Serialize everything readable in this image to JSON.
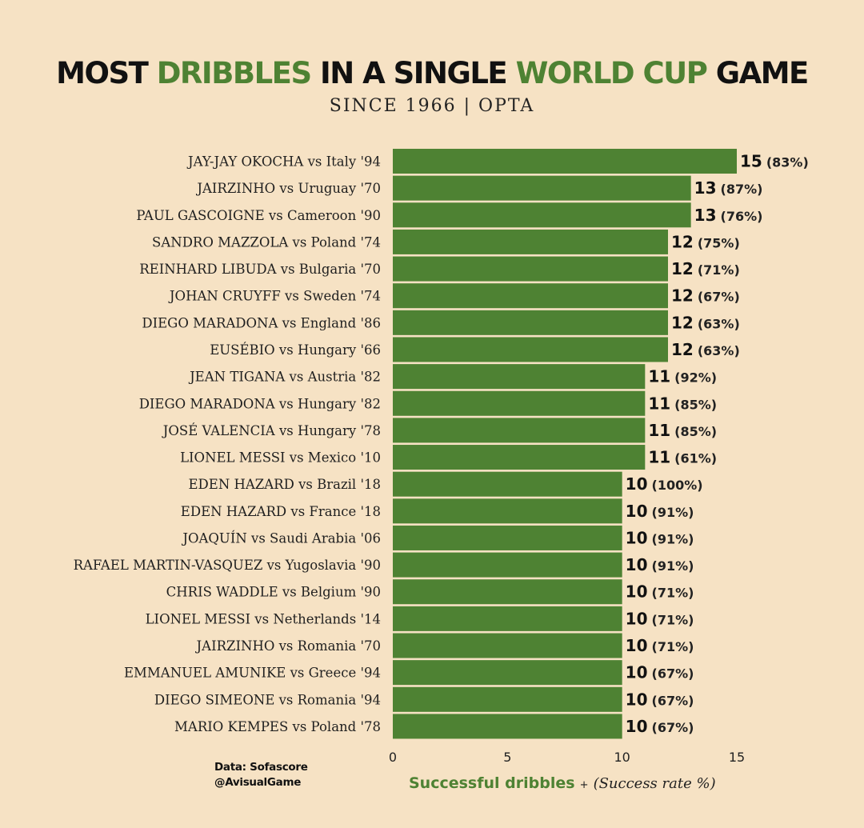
{
  "header": {
    "title_parts": [
      "MOST ",
      "DRIBBLES",
      " IN A SINGLE ",
      "WORLD CUP",
      " GAME"
    ],
    "subtitle": "SINCE 1966 | OPTA"
  },
  "footer": {
    "source_line1": "Data: Sofascore",
    "source_line2": "@AvisualGame"
  },
  "colors": {
    "background": "#f6e2c4",
    "bar": "#4e8233",
    "accent": "#4e8233"
  },
  "chart_data": {
    "type": "bar",
    "orientation": "horizontal",
    "title": "MOST DRIBBLES IN A SINGLE WORLD CUP GAME",
    "subtitle": "SINCE 1966 | OPTA",
    "xlabel": "Successful dribbles",
    "xlabel_plus": "+",
    "xlabel_secondary": "(Success rate %)",
    "xlim": [
      0,
      15
    ],
    "xticks": [
      0,
      5,
      10,
      15
    ],
    "categories": [
      "JAY-JAY OKOCHA vs Italy '94",
      "JAIRZINHO vs Uruguay '70",
      "PAUL GASCOIGNE vs Cameroon '90",
      "SANDRO MAZZOLA vs Poland '74",
      "REINHARD LIBUDA vs Bulgaria '70",
      "JOHAN CRUYFF vs Sweden '74",
      "DIEGO MARADONA vs England '86",
      "EUSÉBIO vs Hungary '66",
      "JEAN TIGANA vs Austria '82",
      "DIEGO MARADONA vs Hungary '82",
      "JOSÉ VALENCIA vs Hungary '78",
      "LIONEL MESSI vs Mexico '10",
      "EDEN HAZARD vs Brazil '18",
      "EDEN HAZARD vs France '18",
      "JOAQUÍN vs Saudi Arabia '06",
      "RAFAEL MARTIN-VASQUEZ vs Yugoslavia '90",
      "CHRIS WADDLE vs Belgium '90",
      "LIONEL MESSI vs Netherlands '14",
      "JAIRZINHO vs Romania '70",
      "EMMANUEL AMUNIKE vs Greece '94",
      "DIEGO SIMEONE vs Romania '94",
      "MARIO KEMPES vs Poland '78"
    ],
    "values": [
      15,
      13,
      13,
      12,
      12,
      12,
      12,
      12,
      11,
      11,
      11,
      11,
      10,
      10,
      10,
      10,
      10,
      10,
      10,
      10,
      10,
      10
    ],
    "success_rate_labels": [
      "(83%)",
      "(87%)",
      "(76%)",
      "(75%)",
      "(71%)",
      "(67%)",
      "(63%)",
      "(63%)",
      "(92%)",
      "(85%)",
      "(85%)",
      "(61%)",
      "(100%)",
      "(91%)",
      "(91%)",
      "(91%)",
      "(71%)",
      "(71%)",
      "(71%)",
      "(67%)",
      "(67%)",
      "(67%)"
    ],
    "grid": false,
    "legend": "none"
  }
}
